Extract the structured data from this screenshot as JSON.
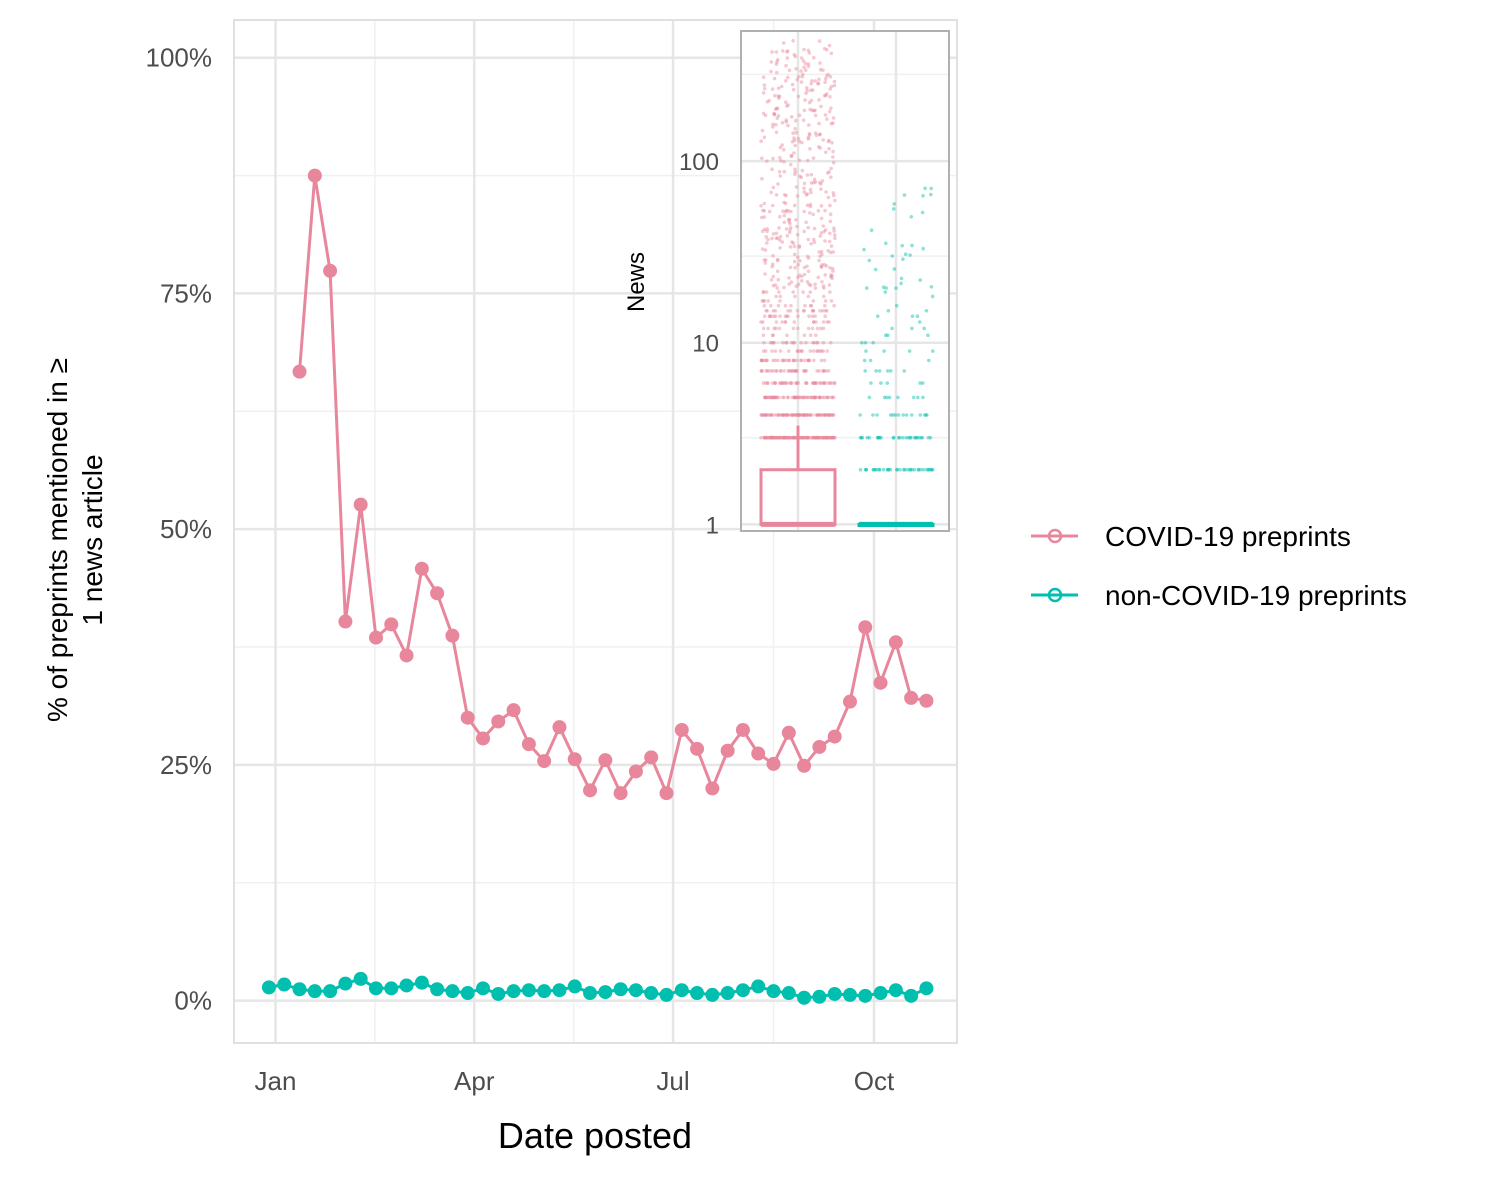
{
  "colors": {
    "covid": "#E8879C",
    "noncovid": "#00BFAE",
    "grid_major": "#e6e6e6",
    "grid_minor": "#f0f0f0",
    "panel_border": "#e0e0e0",
    "inset_border": "#b0b0b0"
  },
  "chart_data": [
    {
      "type": "line",
      "xlabel": "Date posted",
      "ylabel_lines": [
        "% of preprints mentioned in ≥",
        "1 news article"
      ],
      "x_unit": "date",
      "x_range": [
        "2019-12-13",
        "2020-11-08"
      ],
      "ylim": [
        -4.5,
        104
      ],
      "x_ticks": [
        {
          "date": "2020-01-01",
          "label": "Jan"
        },
        {
          "date": "2020-04-01",
          "label": "Apr"
        },
        {
          "date": "2020-07-01",
          "label": "Jul"
        },
        {
          "date": "2020-10-01",
          "label": "Oct"
        }
      ],
      "y_ticks": [
        {
          "value": 0,
          "label": "0%"
        },
        {
          "value": 25,
          "label": "25%"
        },
        {
          "value": 50,
          "label": "50%"
        },
        {
          "value": 75,
          "label": "75%"
        },
        {
          "value": 100,
          "label": "100%"
        }
      ],
      "grid": true,
      "legend_position": "right",
      "series": [
        {
          "name": "COVID-19 preprints",
          "color_key": "covid",
          "points": [
            [
              "2020-01-12",
              66.7
            ],
            [
              "2020-01-19",
              87.5
            ],
            [
              "2020-01-26",
              77.4
            ],
            [
              "2020-02-02",
              40.2
            ],
            [
              "2020-02-09",
              52.6
            ],
            [
              "2020-02-16",
              38.5
            ],
            [
              "2020-02-23",
              39.9
            ],
            [
              "2020-03-01",
              36.6
            ],
            [
              "2020-03-08",
              45.8
            ],
            [
              "2020-03-15",
              43.2
            ],
            [
              "2020-03-22",
              38.7
            ],
            [
              "2020-03-29",
              30.0
            ],
            [
              "2020-04-05",
              27.8
            ],
            [
              "2020-04-12",
              29.6
            ],
            [
              "2020-04-19",
              30.8
            ],
            [
              "2020-04-26",
              27.2
            ],
            [
              "2020-05-03",
              25.4
            ],
            [
              "2020-05-10",
              29.0
            ],
            [
              "2020-05-17",
              25.6
            ],
            [
              "2020-05-24",
              22.3
            ],
            [
              "2020-05-31",
              25.5
            ],
            [
              "2020-06-07",
              22.0
            ],
            [
              "2020-06-14",
              24.3
            ],
            [
              "2020-06-21",
              25.8
            ],
            [
              "2020-06-28",
              22.0
            ],
            [
              "2020-07-05",
              28.7
            ],
            [
              "2020-07-12",
              26.7
            ],
            [
              "2020-07-19",
              22.5
            ],
            [
              "2020-07-26",
              26.5
            ],
            [
              "2020-08-02",
              28.7
            ],
            [
              "2020-08-09",
              26.2
            ],
            [
              "2020-08-16",
              25.1
            ],
            [
              "2020-08-23",
              28.4
            ],
            [
              "2020-08-30",
              24.9
            ],
            [
              "2020-09-06",
              26.9
            ],
            [
              "2020-09-13",
              28.0
            ],
            [
              "2020-09-20",
              31.7
            ],
            [
              "2020-09-27",
              39.6
            ],
            [
              "2020-10-04",
              33.7
            ],
            [
              "2020-10-11",
              38.0
            ],
            [
              "2020-10-18",
              32.1
            ],
            [
              "2020-10-25",
              31.8
            ]
          ]
        },
        {
          "name": "non-COVID-19 preprints",
          "color_key": "noncovid",
          "points": [
            [
              "2019-12-29",
              1.4
            ],
            [
              "2020-01-05",
              1.7
            ],
            [
              "2020-01-12",
              1.2
            ],
            [
              "2020-01-19",
              1.0
            ],
            [
              "2020-01-26",
              1.0
            ],
            [
              "2020-02-02",
              1.8
            ],
            [
              "2020-02-09",
              2.3
            ],
            [
              "2020-02-16",
              1.3
            ],
            [
              "2020-02-23",
              1.3
            ],
            [
              "2020-03-01",
              1.6
            ],
            [
              "2020-03-08",
              1.9
            ],
            [
              "2020-03-15",
              1.2
            ],
            [
              "2020-03-22",
              1.0
            ],
            [
              "2020-03-29",
              0.8
            ],
            [
              "2020-04-05",
              1.3
            ],
            [
              "2020-04-12",
              0.7
            ],
            [
              "2020-04-19",
              1.0
            ],
            [
              "2020-04-26",
              1.1
            ],
            [
              "2020-05-03",
              1.0
            ],
            [
              "2020-05-10",
              1.1
            ],
            [
              "2020-05-17",
              1.5
            ],
            [
              "2020-05-24",
              0.8
            ],
            [
              "2020-05-31",
              0.9
            ],
            [
              "2020-06-07",
              1.2
            ],
            [
              "2020-06-14",
              1.1
            ],
            [
              "2020-06-21",
              0.8
            ],
            [
              "2020-06-28",
              0.6
            ],
            [
              "2020-07-05",
              1.1
            ],
            [
              "2020-07-12",
              0.8
            ],
            [
              "2020-07-19",
              0.6
            ],
            [
              "2020-07-26",
              0.8
            ],
            [
              "2020-08-02",
              1.1
            ],
            [
              "2020-08-09",
              1.5
            ],
            [
              "2020-08-16",
              1.0
            ],
            [
              "2020-08-23",
              0.8
            ],
            [
              "2020-08-30",
              0.3
            ],
            [
              "2020-09-06",
              0.4
            ],
            [
              "2020-09-13",
              0.7
            ],
            [
              "2020-09-20",
              0.6
            ],
            [
              "2020-09-27",
              0.5
            ],
            [
              "2020-10-04",
              0.8
            ],
            [
              "2020-10-11",
              1.1
            ],
            [
              "2020-10-18",
              0.5
            ],
            [
              "2020-10-25",
              1.3
            ]
          ]
        }
      ]
    },
    {
      "type": "boxplot",
      "scale": "log10",
      "ylabel": "News",
      "ylim": [
        0.92,
        520
      ],
      "y_ticks": [
        {
          "value": 1,
          "label": "1"
        },
        {
          "value": 10,
          "label": "10"
        },
        {
          "value": 100,
          "label": "100"
        }
      ],
      "grid": true,
      "groups": [
        {
          "series_ref": "COVID-19 preprints",
          "color_key": "covid",
          "box": {
            "q1": 1,
            "median": 1,
            "q3": 2,
            "whisker_low": 1,
            "whisker_high": 3.5
          },
          "outlier_range": [
            3,
            460
          ],
          "outlier_count": 900
        },
        {
          "series_ref": "non-COVID-19 preprints",
          "color_key": "noncovid",
          "box": {
            "q1": 1,
            "median": 1,
            "q3": 1,
            "whisker_low": 1,
            "whisker_high": 1
          },
          "outlier_range": [
            2,
            80
          ],
          "outlier_count": 150
        }
      ]
    }
  ]
}
